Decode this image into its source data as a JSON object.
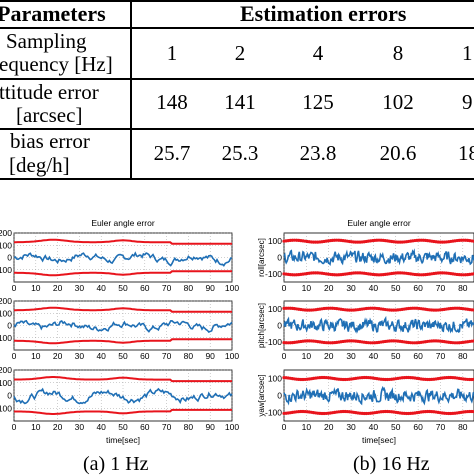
{
  "table": {
    "header": {
      "params": "Parameters",
      "errors": "Estimation errors"
    },
    "rows": [
      {
        "label1": "Sampling",
        "label2": "equency [Hz]",
        "values": [
          "1",
          "2",
          "4",
          "8",
          "1"
        ]
      },
      {
        "label1": "ttitude error",
        "label2": "[arcsec]",
        "values": [
          "148",
          "141",
          "125",
          "102",
          "9"
        ]
      },
      {
        "label1": "bias error",
        "label2": "[deg/h]",
        "values": [
          "25.7",
          "25.3",
          "23.8",
          "20.6",
          "18"
        ]
      }
    ]
  },
  "figures": {
    "left": {
      "title": "Euler angle error",
      "xlabel": "time[sec]",
      "caption": "(a) 1 Hz"
    },
    "right": {
      "title": "Euler angle error",
      "xlabel": "time[sec]",
      "caption": "(b) 16 Hz",
      "ylabels": [
        "roll[arcsec]",
        "pitch[arcsec]",
        "yaw[arcsec]"
      ]
    }
  },
  "chart_data": [
    {
      "type": "line",
      "title": "Euler angle error",
      "xlabel": "time[sec]",
      "xlim": [
        0,
        100
      ],
      "xticks": [
        "0",
        "10",
        "20",
        "30",
        "40",
        "50",
        "60",
        "70",
        "80",
        "90",
        "100"
      ],
      "panels": [
        {
          "ylabel": "",
          "yticks": [
            "-100",
            "0",
            "100",
            "200"
          ],
          "ylim": [
            -200,
            200
          ]
        },
        {
          "ylabel": "",
          "yticks": [
            "-100",
            "0",
            "100",
            "200"
          ],
          "ylim": [
            -200,
            200
          ]
        },
        {
          "ylabel": "",
          "yticks": [
            "-100",
            "0",
            "100",
            "200"
          ],
          "ylim": [
            -200,
            200
          ]
        }
      ],
      "series": [
        {
          "color": "#e8141c",
          "kind": "bound"
        },
        {
          "color": "#1f6fb5",
          "kind": "error"
        }
      ]
    },
    {
      "type": "line",
      "title": "Euler angle error",
      "xlabel": "time[sec]",
      "xlim": [
        0,
        85
      ],
      "xticks": [
        "0",
        "10",
        "20",
        "30",
        "40",
        "50",
        "60",
        "70",
        "80"
      ],
      "panels": [
        {
          "ylabel": "roll[arcsec]",
          "yticks": [
            "-100",
            "0",
            "100"
          ],
          "ylim": [
            -150,
            150
          ]
        },
        {
          "ylabel": "pitch[arcsec]",
          "yticks": [
            "-100",
            "0",
            "100"
          ],
          "ylim": [
            -150,
            150
          ]
        },
        {
          "ylabel": "yaw[arcsec]",
          "yticks": [
            "-100",
            "0",
            "100"
          ],
          "ylim": [
            -150,
            150
          ]
        }
      ],
      "series": [
        {
          "color": "#e8141c",
          "kind": "bound"
        },
        {
          "color": "#1f6fb5",
          "kind": "error"
        }
      ]
    }
  ]
}
